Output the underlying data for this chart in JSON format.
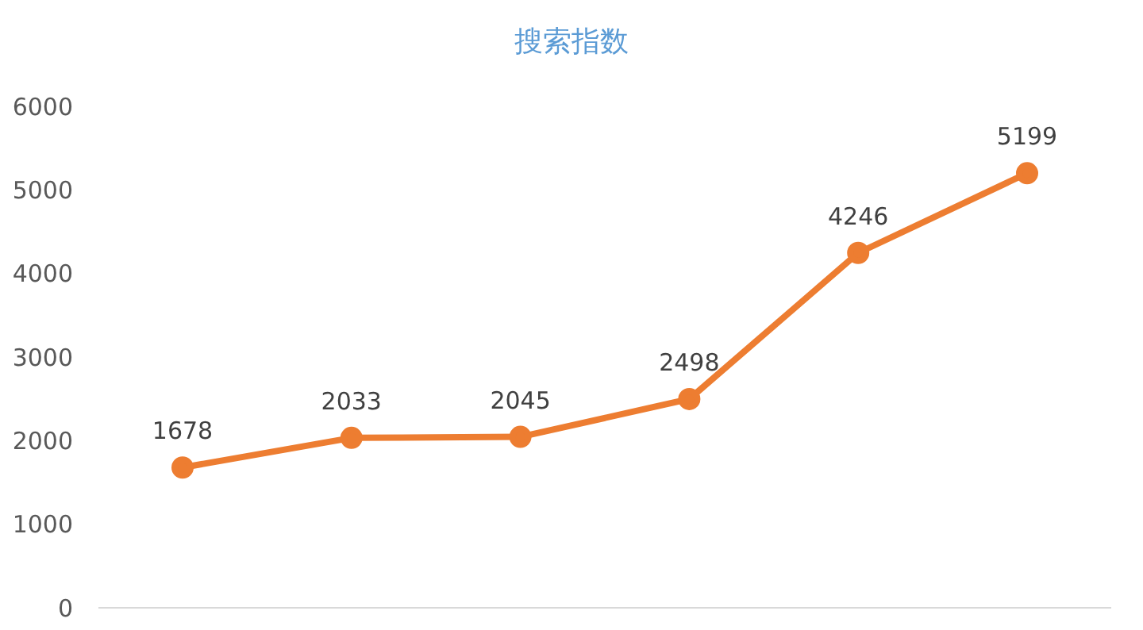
{
  "chart_data": {
    "type": "line",
    "title": "搜索指数",
    "categories": [
      null,
      null,
      null,
      null,
      null,
      null
    ],
    "series": [
      {
        "color": "#ed7d31",
        "values": [
          1678,
          2033,
          2045,
          2498,
          4246,
          5199
        ]
      }
    ],
    "ylim": [
      0,
      6000
    ],
    "yticks": [
      0,
      1000,
      2000,
      3000,
      4000,
      5000,
      6000
    ],
    "grid": false,
    "legend": false,
    "marker": "circle",
    "line_style": "solid",
    "data_labels": true
  }
}
